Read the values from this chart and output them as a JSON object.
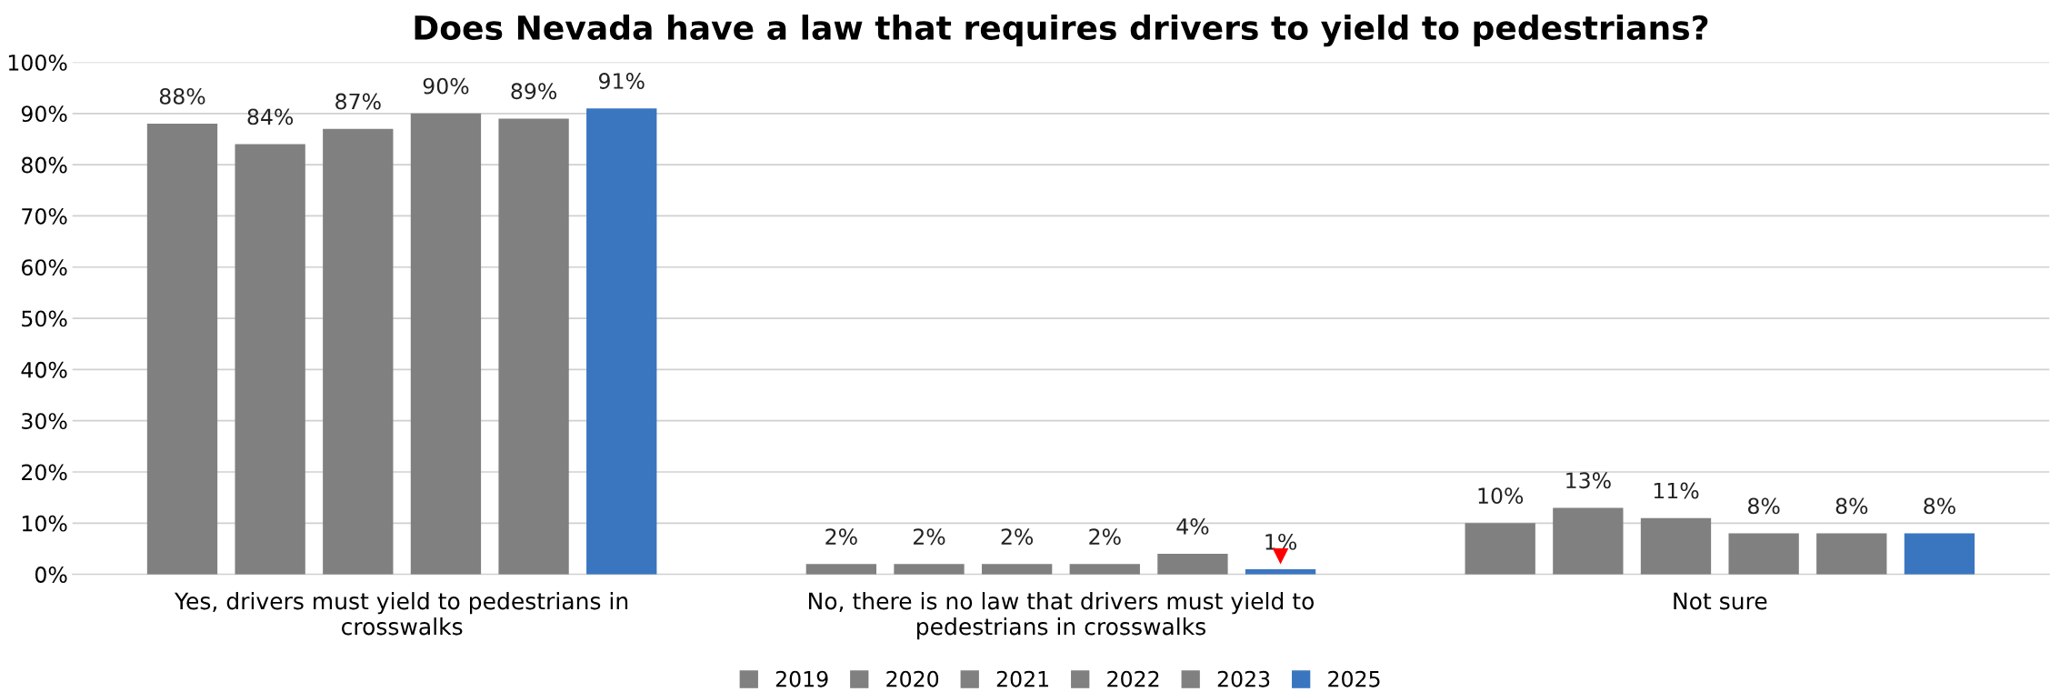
{
  "chart_data": {
    "type": "bar",
    "title": "Does Nevada have a law that requires drivers to yield to pedestrians?",
    "categories": [
      "Yes, drivers must yield to pedestrians in\ncrosswalks",
      "No, there is no law that drivers must yield to\npedestrians in crosswalks",
      "Not sure"
    ],
    "series": [
      {
        "name": "2019",
        "color": "#808080",
        "values": [
          88,
          2,
          10
        ]
      },
      {
        "name": "2020",
        "color": "#808080",
        "values": [
          84,
          2,
          13
        ]
      },
      {
        "name": "2021",
        "color": "#808080",
        "values": [
          87,
          2,
          11
        ]
      },
      {
        "name": "2022",
        "color": "#808080",
        "values": [
          90,
          2,
          8
        ]
      },
      {
        "name": "2023",
        "color": "#808080",
        "values": [
          89,
          4,
          8
        ]
      },
      {
        "name": "2025",
        "color": "#3a76c0",
        "values": [
          91,
          1,
          8
        ]
      }
    ],
    "ylim": [
      0,
      100
    ],
    "yticks": [
      {
        "value": 0,
        "label": "0%"
      },
      {
        "value": 10,
        "label": "10%"
      },
      {
        "value": 20,
        "label": "20%"
      },
      {
        "value": 30,
        "label": "30%"
      },
      {
        "value": 40,
        "label": "40%"
      },
      {
        "value": 50,
        "label": "50%"
      },
      {
        "value": 60,
        "label": "60%"
      },
      {
        "value": 70,
        "label": "70%"
      },
      {
        "value": 80,
        "label": "80%"
      },
      {
        "value": 90,
        "label": "90%"
      },
      {
        "value": 100,
        "label": "100%"
      }
    ],
    "value_labels": [
      [
        "88%",
        "2%",
        "10%"
      ],
      [
        "84%",
        "2%",
        "13%"
      ],
      [
        "87%",
        "2%",
        "11%"
      ],
      [
        "90%",
        "2%",
        "8%"
      ],
      [
        "89%",
        "4%",
        "8%"
      ],
      [
        "91%",
        "1%",
        "8%"
      ]
    ],
    "grid": "y",
    "legend": "bottom"
  }
}
